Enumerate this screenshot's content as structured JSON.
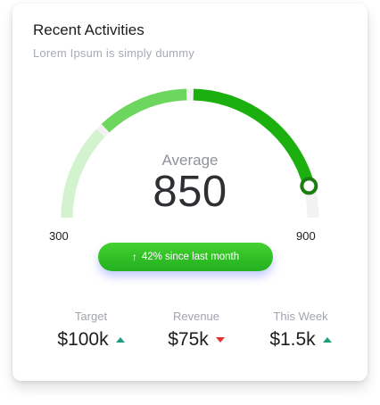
{
  "card": {
    "title": "Recent Activities",
    "subtitle": "Lorem Ipsum is simply dummy"
  },
  "gauge": {
    "label": "Average",
    "value": "850",
    "min": "300",
    "max": "900",
    "fraction": 0.917,
    "colors": {
      "track": "#f2f2f2",
      "segment_light": "#d3f3cf",
      "segment_mid": "#6dd65e",
      "segment_dark": "#1cb00f",
      "knob": "#1c7d10"
    }
  },
  "badge": {
    "icon": "arrow-up-icon",
    "text": "42% since last month"
  },
  "stats": [
    {
      "label": "Target",
      "value": "$100k",
      "trend": "up"
    },
    {
      "label": "Revenue",
      "value": "$75k",
      "trend": "down"
    },
    {
      "label": "This Week",
      "value": "$1.5k",
      "trend": "up"
    }
  ]
}
